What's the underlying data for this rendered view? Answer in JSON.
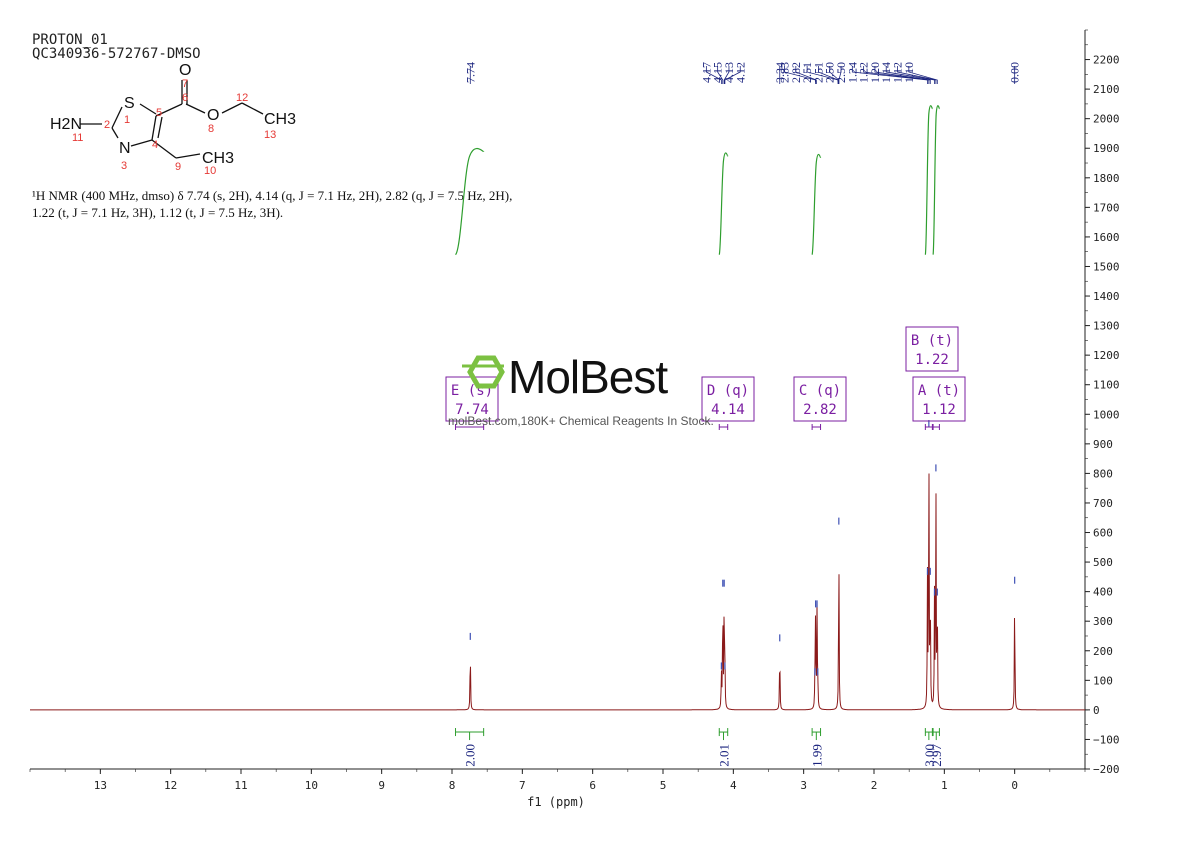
{
  "header": {
    "line1": "PROTON_01",
    "line2": "QC340936-572767-DMSO"
  },
  "description": {
    "line1": "¹H NMR (400 MHz, dmso) δ 7.74 (s, 2H), 4.14 (q, J = 7.1 Hz, 2H), 2.82 (q, J = 7.5 Hz, 2H),",
    "line2": "1.22 (t, J = 7.1 Hz, 3H), 1.12 (t, J = 7.5 Hz, 3H)."
  },
  "watermark": {
    "brand": "MolBest",
    "tagline": "molBest.com,180K+ Chemical Reagents In Stock."
  },
  "structure": {
    "atoms": [
      "S",
      "O",
      "O",
      "N",
      "H2N",
      "CH3",
      "CH3"
    ],
    "numbers": [
      "1",
      "2",
      "3",
      "4",
      "5",
      "6",
      "7",
      "8",
      "9",
      "10",
      "11",
      "12",
      "13"
    ]
  },
  "colors": {
    "spectrum": "#8b1a1a",
    "integral": "#2e9e2e",
    "peak_label": "#1a237e",
    "multiplet_box": "#7b1fa2"
  },
  "chart_data": {
    "type": "line",
    "xlabel": "f1 (ppm)",
    "xlim": [
      14.0,
      -1.0
    ],
    "ylim": [
      -200,
      2300
    ],
    "x_ticks": [
      13,
      12,
      11,
      10,
      9,
      8,
      7,
      6,
      5,
      4,
      3,
      2,
      1,
      0
    ],
    "y_ticks": [
      2200,
      2100,
      2000,
      1900,
      1800,
      1700,
      1600,
      1500,
      1400,
      1300,
      1200,
      1100,
      1000,
      900,
      800,
      700,
      600,
      500,
      400,
      300,
      200,
      100,
      0,
      -100,
      -200
    ],
    "peaks": [
      {
        "ppm": 7.74,
        "height": 230
      },
      {
        "ppm": 4.17,
        "height": 130
      },
      {
        "ppm": 4.15,
        "height": 410
      },
      {
        "ppm": 4.13,
        "height": 410
      },
      {
        "ppm": 4.12,
        "height": 130
      },
      {
        "ppm": 3.34,
        "height": 225
      },
      {
        "ppm": 2.84,
        "height": 110
      },
      {
        "ppm": 2.83,
        "height": 340
      },
      {
        "ppm": 2.81,
        "height": 340
      },
      {
        "ppm": 2.8,
        "height": 110
      },
      {
        "ppm": 2.5,
        "height": 620
      },
      {
        "ppm": 1.24,
        "height": 450
      },
      {
        "ppm": 1.22,
        "height": 950
      },
      {
        "ppm": 1.2,
        "height": 450
      },
      {
        "ppm": 1.14,
        "height": 380
      },
      {
        "ppm": 1.12,
        "height": 800
      },
      {
        "ppm": 1.1,
        "height": 380
      },
      {
        "ppm": 0.0,
        "height": 420
      }
    ],
    "peak_labels": [
      "7.74",
      "4.17",
      "4.15",
      "4.13",
      "4.12",
      "3.34",
      "2.83",
      "2.82",
      "2.51",
      "2.51",
      "2.50",
      "2.50",
      "1.24",
      "1.22",
      "1.20",
      "1.14",
      "1.12",
      "1.10",
      "0.00"
    ],
    "integrals": [
      {
        "from": 7.95,
        "to": 7.55,
        "value": "2.00",
        "y_start": 1540,
        "y_end": 1890
      },
      {
        "from": 4.2,
        "to": 4.08,
        "value": "2.01",
        "y_start": 1540,
        "y_end": 1875
      },
      {
        "from": 2.88,
        "to": 2.76,
        "value": "1.99",
        "y_start": 1540,
        "y_end": 1870
      },
      {
        "from": 1.27,
        "to": 1.17,
        "value": "3.00",
        "y_start": 1540,
        "y_end": 2035
      },
      {
        "from": 1.16,
        "to": 1.07,
        "value": "2.97",
        "y_start": 1540,
        "y_end": 2035
      }
    ],
    "multiplets": [
      {
        "letter": "E",
        "type": "(s)",
        "shift": "7.74",
        "range": [
          7.95,
          7.55
        ]
      },
      {
        "letter": "D",
        "type": "(q)",
        "shift": "4.14",
        "range": [
          4.2,
          4.08
        ]
      },
      {
        "letter": "C",
        "type": "(q)",
        "shift": "2.82",
        "range": [
          2.88,
          2.76
        ]
      },
      {
        "letter": "B",
        "type": "(t)",
        "shift": "1.22",
        "range": [
          1.27,
          1.17
        ]
      },
      {
        "letter": "A",
        "type": "(t)",
        "shift": "1.12",
        "range": [
          1.16,
          1.07
        ]
      }
    ]
  }
}
